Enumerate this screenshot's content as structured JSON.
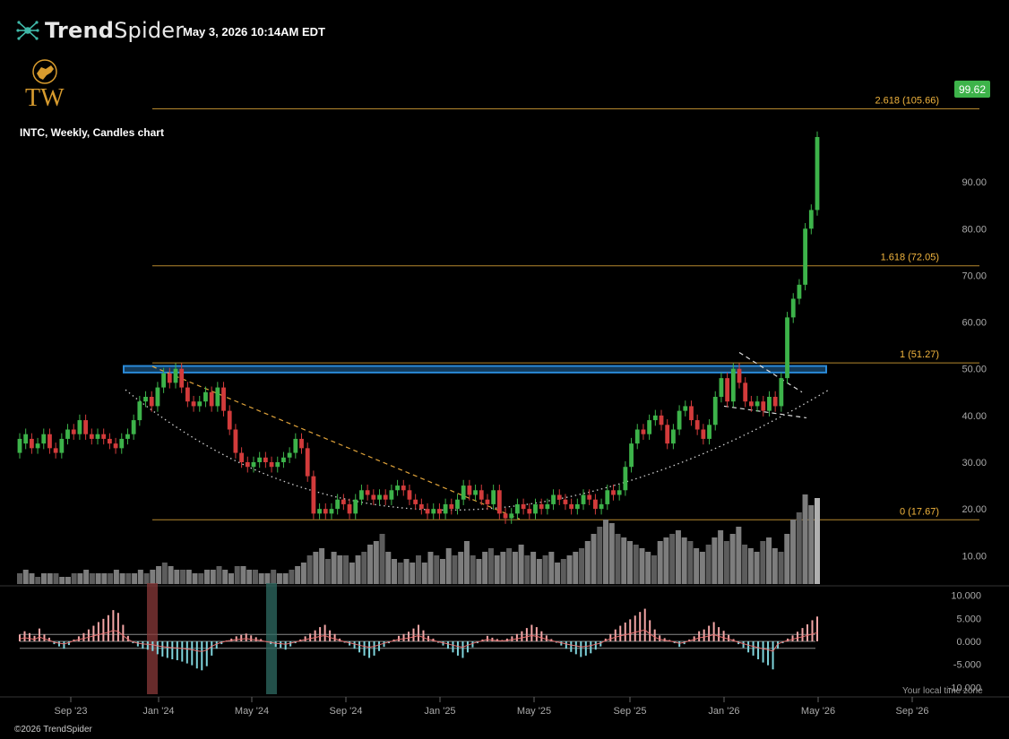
{
  "header": {
    "brand": "TrendSpider",
    "brand_bold": "Trend",
    "brand_light": "Spider",
    "timestamp": "May 3, 2026 10:14AM EDT",
    "logo_text": "TW",
    "symbol_label": "INTC, Weekly, Candles chart"
  },
  "footer": {
    "copyright": "©2026 TrendSpider",
    "local_time": "Your local time zone"
  },
  "colors": {
    "up": "#3db34a",
    "down": "#d23b3b",
    "fib": "#f2b53e",
    "zone_fill": "#123a5a",
    "zone_stroke": "#2a8ad8",
    "volume": "#7d7d7d",
    "osc_pos": "#f4a6a6",
    "osc_neg": "#7fd4dc"
  },
  "chart_data": {
    "type": "candlestick",
    "ticker": "INTC",
    "timeframe": "Weekly",
    "last_price": "99.62",
    "y_axis": {
      "range": [
        4.3,
        111.7
      ],
      "ticks": [
        "10.00",
        "20.00",
        "30.00",
        "40.00",
        "50.00",
        "60.00",
        "70.00",
        "80.00",
        "90.00"
      ]
    },
    "x_axis": {
      "labels": [
        "Sep '23",
        "Jan '24",
        "May '24",
        "Sep '24",
        "Jan '25",
        "May '25",
        "Sep '25",
        "Jan '26",
        "May '26",
        "Sep '26"
      ]
    },
    "fib_levels": [
      {
        "label": "2.618 (105.66)",
        "value": 105.66
      },
      {
        "label": "1.618 (72.05)",
        "value": 72.05
      },
      {
        "label": "1 (51.27)",
        "value": 51.27
      },
      {
        "label": "0 (17.67)",
        "value": 17.67
      }
    ],
    "resistance_zone": {
      "low": 49.2,
      "high": 50.6
    },
    "candles": [
      [
        32,
        35
      ],
      [
        34,
        36
      ],
      [
        35,
        33
      ],
      [
        33,
        34
      ],
      [
        34,
        36
      ],
      [
        36,
        33
      ],
      [
        33,
        32
      ],
      [
        32,
        35
      ],
      [
        35,
        37
      ],
      [
        37,
        36
      ],
      [
        36,
        39
      ],
      [
        39,
        36
      ],
      [
        36,
        35
      ],
      [
        35,
        36
      ],
      [
        36,
        35
      ],
      [
        35,
        34
      ],
      [
        34,
        33
      ],
      [
        33,
        35
      ],
      [
        35,
        36
      ],
      [
        36,
        39
      ],
      [
        39,
        43
      ],
      [
        43,
        44
      ],
      [
        44,
        42
      ],
      [
        42,
        46
      ],
      [
        46,
        49
      ],
      [
        49,
        47
      ],
      [
        47,
        50
      ],
      [
        50,
        46
      ],
      [
        46,
        43
      ],
      [
        43,
        42
      ],
      [
        42,
        43
      ],
      [
        43,
        45
      ],
      [
        45,
        42
      ],
      [
        42,
        46
      ],
      [
        46,
        41
      ],
      [
        41,
        37
      ],
      [
        37,
        32
      ],
      [
        32,
        30
      ],
      [
        30,
        29
      ],
      [
        29,
        30
      ],
      [
        30,
        31
      ],
      [
        31,
        30
      ],
      [
        30,
        29
      ],
      [
        29,
        30
      ],
      [
        30,
        31
      ],
      [
        31,
        32
      ],
      [
        32,
        35
      ],
      [
        35,
        33
      ],
      [
        33,
        27
      ],
      [
        27,
        19
      ],
      [
        19,
        20
      ],
      [
        20,
        19
      ],
      [
        19,
        20
      ],
      [
        20,
        22
      ],
      [
        22,
        21
      ],
      [
        21,
        19
      ],
      [
        19,
        22
      ],
      [
        22,
        24
      ],
      [
        24,
        23
      ],
      [
        23,
        22
      ],
      [
        22,
        23
      ],
      [
        23,
        22
      ],
      [
        22,
        24
      ],
      [
        24,
        25
      ],
      [
        25,
        24
      ],
      [
        24,
        22
      ],
      [
        22,
        21
      ],
      [
        21,
        20
      ],
      [
        20,
        19
      ],
      [
        19,
        20
      ],
      [
        20,
        19
      ],
      [
        19,
        21
      ],
      [
        21,
        20
      ],
      [
        20,
        22
      ],
      [
        22,
        25
      ],
      [
        25,
        23
      ],
      [
        23,
        24
      ],
      [
        24,
        22
      ],
      [
        22,
        21
      ],
      [
        21,
        24
      ],
      [
        24,
        19
      ],
      [
        19,
        18
      ],
      [
        18,
        19
      ],
      [
        19,
        21
      ],
      [
        21,
        20
      ],
      [
        20,
        19
      ],
      [
        19,
        21
      ],
      [
        21,
        20
      ],
      [
        20,
        21
      ],
      [
        21,
        23
      ],
      [
        23,
        22
      ],
      [
        22,
        21
      ],
      [
        21,
        20
      ],
      [
        20,
        21
      ],
      [
        21,
        23
      ],
      [
        23,
        22
      ],
      [
        22,
        20
      ],
      [
        20,
        21
      ],
      [
        21,
        24
      ],
      [
        24,
        23
      ],
      [
        23,
        24
      ],
      [
        24,
        29
      ],
      [
        29,
        34
      ],
      [
        34,
        37
      ],
      [
        37,
        36
      ],
      [
        36,
        39
      ],
      [
        39,
        40
      ],
      [
        40,
        38
      ],
      [
        38,
        34
      ],
      [
        34,
        37
      ],
      [
        37,
        41
      ],
      [
        41,
        42
      ],
      [
        42,
        39
      ],
      [
        39,
        37
      ],
      [
        37,
        35
      ],
      [
        35,
        38
      ],
      [
        38,
        44
      ],
      [
        44,
        48
      ],
      [
        48,
        43
      ],
      [
        43,
        50
      ],
      [
        50,
        47
      ],
      [
        47,
        43
      ],
      [
        43,
        42
      ],
      [
        42,
        43
      ],
      [
        43,
        41
      ],
      [
        41,
        44
      ],
      [
        44,
        42
      ],
      [
        42,
        48
      ],
      [
        48,
        61
      ],
      [
        61,
        65
      ],
      [
        65,
        68
      ],
      [
        68,
        80
      ],
      [
        80,
        84
      ],
      [
        84,
        99.62
      ]
    ],
    "volume": [
      3,
      4,
      3,
      2,
      3,
      3,
      3,
      2,
      2,
      3,
      3,
      4,
      3,
      3,
      3,
      3,
      4,
      3,
      3,
      3,
      4,
      3,
      4,
      5,
      6,
      5,
      4,
      4,
      4,
      3,
      3,
      4,
      4,
      5,
      4,
      3,
      5,
      5,
      4,
      4,
      3,
      3,
      4,
      3,
      3,
      4,
      5,
      6,
      8,
      9,
      10,
      7,
      9,
      8,
      8,
      6,
      8,
      9,
      11,
      12,
      14,
      9,
      7,
      6,
      7,
      6,
      8,
      6,
      9,
      8,
      7,
      10,
      8,
      9,
      12,
      8,
      7,
      9,
      10,
      8,
      9,
      10,
      9,
      11,
      8,
      9,
      7,
      8,
      9,
      6,
      7,
      8,
      9,
      10,
      12,
      14,
      16,
      18,
      17,
      14,
      13,
      12,
      11,
      10,
      9,
      8,
      12,
      13,
      14,
      15,
      13,
      12,
      10,
      9,
      11,
      13,
      15,
      12,
      14,
      16,
      11,
      10,
      9,
      12,
      13,
      10,
      9,
      14,
      18,
      20,
      25,
      22,
      24
    ],
    "oscillator": [
      1.5,
      2.2,
      1.8,
      1.2,
      2.8,
      1.5,
      0.8,
      -0.6,
      -1.1,
      -1.6,
      -0.8,
      0.4,
      1.1,
      1.8,
      2.6,
      3.4,
      4.2,
      4.9,
      5.7,
      6.8,
      6.2,
      3.6,
      1.2,
      -0.4,
      -1.1,
      -1.6,
      -1.8,
      -2.1,
      -2.8,
      -3.3,
      -3.6,
      -3.9,
      -4.1,
      -4.4,
      -4.8,
      -5.2,
      -5.9,
      -6.3,
      -5.4,
      -3.1,
      -1.6,
      -0.6,
      0.2,
      0.6,
      1.1,
      1.4,
      1.7,
      1.3,
      0.9,
      0.5,
      -0.1,
      -0.6,
      -1.2,
      -1.4,
      -1.8,
      -1.1,
      -0.4,
      0.4,
      1.1,
      1.7,
      2.4,
      3.1,
      3.6,
      2.4,
      1.6,
      0.6,
      -0.3,
      -0.9,
      -1.6,
      -2.4,
      -3.1,
      -3.6,
      -3.1,
      -2.1,
      -1.2,
      -0.4,
      0.4,
      1.2,
      1.6,
      2.1,
      2.8,
      3.6,
      2.4,
      1.2,
      0.6,
      -0.3,
      -0.9,
      -1.6,
      -2.4,
      -3.1,
      -3.6,
      -2.4,
      -1.3,
      -0.4,
      0.4,
      1.2,
      0.8,
      0.5,
      0.3,
      0.6,
      1.1,
      1.6,
      2.2,
      2.9,
      3.6,
      3.1,
      2.2,
      1.3,
      0.5,
      -0.3,
      -0.9,
      -1.6,
      -2.3,
      -2.8,
      -3.4,
      -3.1,
      -2.6,
      -1.8,
      -1.1,
      0.6,
      1.6,
      2.6,
      3.4,
      4.1,
      4.8,
      5.6,
      6.4,
      7.1,
      4.6,
      2.6,
      1.3,
      0.7,
      0.3,
      -0.4,
      -1.2,
      -0.6,
      0.4,
      1.1,
      2.2,
      2.6,
      3.4,
      4.2,
      3.1,
      2.3,
      1.4,
      0.5,
      -0.6,
      -1.4,
      -2.4,
      -3.1,
      -3.9,
      -4.6,
      -5.2,
      -6.1,
      -1.6,
      -0.4,
      0.6,
      1.3,
      2.1,
      2.9,
      3.7,
      4.6,
      5.4
    ],
    "osc_axis": {
      "range": [
        -11.5,
        11.5
      ],
      "ticks": [
        "10.000",
        "5.000",
        "0.000",
        "-5.000",
        "-10.000"
      ]
    }
  }
}
